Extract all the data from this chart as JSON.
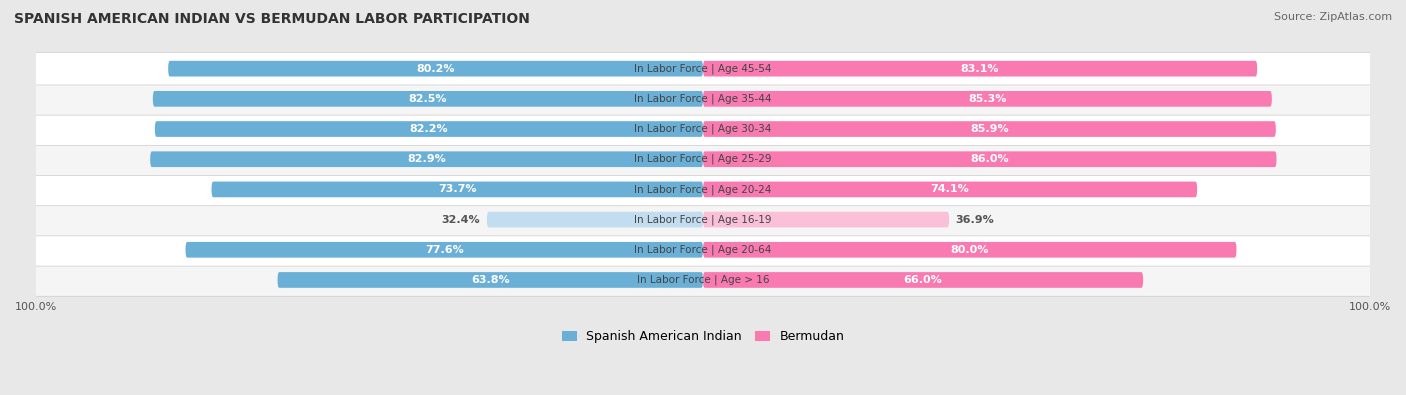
{
  "title": "Spanish American Indian vs Bermudan Labor Participation",
  "source": "Source: ZipAtlas.com",
  "categories": [
    "In Labor Force | Age > 16",
    "In Labor Force | Age 20-64",
    "In Labor Force | Age 16-19",
    "In Labor Force | Age 20-24",
    "In Labor Force | Age 25-29",
    "In Labor Force | Age 30-34",
    "In Labor Force | Age 35-44",
    "In Labor Force | Age 45-54"
  ],
  "spanish_values": [
    63.8,
    77.6,
    32.4,
    73.7,
    82.9,
    82.2,
    82.5,
    80.2
  ],
  "bermudan_values": [
    66.0,
    80.0,
    36.9,
    74.1,
    86.0,
    85.9,
    85.3,
    83.1
  ],
  "light_rows": [
    2
  ],
  "spanish_color": "#6aafd6",
  "bermudan_color": "#f87ab0",
  "spanish_color_light": "#c2ddf0",
  "bermudan_color_light": "#f9c0d8",
  "bg_color": "#e8e8e8",
  "row_color_odd": "#f5f5f5",
  "row_color_even": "#ffffff",
  "label_color_dark": "#555555",
  "label_color_white": "#ffffff",
  "max_val": 100.0,
  "legend_spanish": "Spanish American Indian",
  "legend_bermudan": "Bermudan",
  "title_fontsize": 10,
  "source_fontsize": 8,
  "value_fontsize": 8,
  "cat_fontsize": 7.5
}
